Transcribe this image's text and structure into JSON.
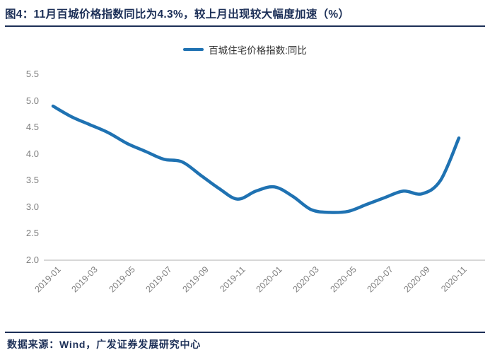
{
  "header": {
    "title": "图4：11月百城价格指数同比为4.3%，较上月出现较大幅度加速（%）"
  },
  "footer": {
    "source": "数据来源：Wind，广发证券发展研究中心"
  },
  "colors": {
    "title_navy": "#1C2F57",
    "line_blue": "#1F72B2",
    "tick_gray": "#7F7F7F",
    "axis_gray": "#BFBFBF"
  },
  "chart_data": {
    "type": "line",
    "title": "11月百城价格指数同比为4.3%，较上月出现较大幅度加速（%）",
    "categories": [
      "2019-01",
      "2019-02",
      "2019-03",
      "2019-04",
      "2019-05",
      "2019-06",
      "2019-07",
      "2019-08",
      "2019-09",
      "2019-10",
      "2019-11",
      "2019-12",
      "2020-01",
      "2020-02",
      "2020-03",
      "2020-04",
      "2020-05",
      "2020-06",
      "2020-07",
      "2020-08",
      "2020-09",
      "2020-10",
      "2020-11"
    ],
    "series": [
      {
        "name": "百城住宅价格指数:同比",
        "values": [
          4.9,
          4.7,
          4.55,
          4.4,
          4.2,
          4.05,
          3.9,
          3.85,
          3.6,
          3.35,
          3.15,
          3.3,
          3.38,
          3.2,
          2.95,
          2.9,
          2.92,
          3.05,
          3.18,
          3.3,
          3.25,
          3.5,
          4.3
        ]
      }
    ],
    "ylim": [
      2.0,
      5.5
    ],
    "yticks": [
      2.0,
      2.5,
      3.0,
      3.5,
      4.0,
      4.5,
      5.0,
      5.5
    ],
    "xtick_labels": [
      "2019-01",
      "2019-03",
      "2019-05",
      "2019-07",
      "2019-09",
      "2019-11",
      "2020-01",
      "2020-03",
      "2020-05",
      "2020-07",
      "2020-09",
      "2020-11"
    ],
    "legend_position": "top",
    "grid": false,
    "xlabel": "",
    "ylabel": ""
  }
}
